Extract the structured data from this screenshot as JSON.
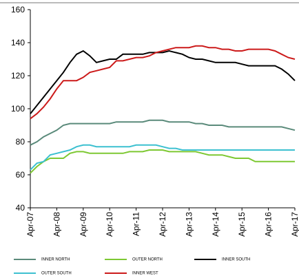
{
  "chart_data": {
    "type": "line",
    "categories": [
      "Apr-07",
      null,
      null,
      null,
      "Apr-08",
      null,
      null,
      null,
      "Apr-09",
      null,
      null,
      null,
      "Apr-10",
      null,
      null,
      null,
      "Apr-11",
      null,
      null,
      null,
      "Apr-12",
      null,
      null,
      null,
      "Apr-13",
      null,
      null,
      null,
      "Apr-14",
      null,
      null,
      null,
      "Apr-15",
      null,
      null,
      null,
      "Apr-16",
      null,
      null,
      null,
      "Apr-17"
    ],
    "ylim": [
      40,
      160
    ],
    "yticks": [
      40,
      60,
      80,
      100,
      120,
      140,
      160
    ],
    "series": [
      {
        "name": "INNER NORTH",
        "color": "#5a8a7a",
        "values": [
          78,
          80,
          83,
          85,
          87,
          90,
          91,
          91,
          91,
          91,
          91,
          91,
          91,
          92,
          92,
          92,
          92,
          92,
          93,
          93,
          93,
          92,
          92,
          92,
          92,
          91,
          91,
          90,
          90,
          90,
          89,
          89,
          89,
          89,
          89,
          89,
          89,
          89,
          89,
          88,
          87
        ]
      },
      {
        "name": "OUTER NORTH",
        "color": "#7dc832",
        "values": [
          61,
          65,
          68,
          70,
          70,
          70,
          73,
          74,
          74,
          73,
          73,
          73,
          73,
          73,
          73,
          74,
          74,
          74,
          75,
          75,
          75,
          74,
          74,
          74,
          74,
          74,
          73,
          72,
          72,
          72,
          71,
          70,
          70,
          70,
          68,
          68,
          68,
          68,
          68,
          68,
          68
        ]
      },
      {
        "name": "INNER SOUTH",
        "color": "#000000",
        "values": [
          97,
          102,
          107,
          112,
          117,
          122,
          128,
          133,
          135,
          132,
          128,
          129,
          130,
          130,
          133,
          133,
          133,
          133,
          134,
          134,
          134,
          135,
          134,
          133,
          131,
          130,
          130,
          129,
          128,
          128,
          128,
          128,
          127,
          126,
          126,
          126,
          126,
          126,
          124,
          121,
          117
        ]
      },
      {
        "name": "OUTER SOUTH",
        "color": "#3cc0d0",
        "values": [
          63,
          67,
          68,
          72,
          73,
          74,
          75,
          77,
          78,
          78,
          77,
          77,
          77,
          77,
          77,
          77,
          78,
          78,
          78,
          78,
          77,
          76,
          76,
          75,
          75,
          75,
          75,
          75,
          75,
          75,
          75,
          75,
          75,
          75,
          75,
          75,
          75,
          75,
          75,
          75,
          75
        ]
      },
      {
        "name": "INNER WEST",
        "color": "#cc1a1a",
        "values": [
          94,
          97,
          101,
          106,
          112,
          117,
          117,
          117,
          119,
          122,
          123,
          124,
          125,
          129,
          129,
          130,
          131,
          131,
          132,
          134,
          135,
          136,
          137,
          137,
          137,
          138,
          138,
          137,
          137,
          136,
          136,
          135,
          135,
          136,
          136,
          136,
          136,
          135,
          133,
          131,
          130
        ]
      }
    ]
  }
}
